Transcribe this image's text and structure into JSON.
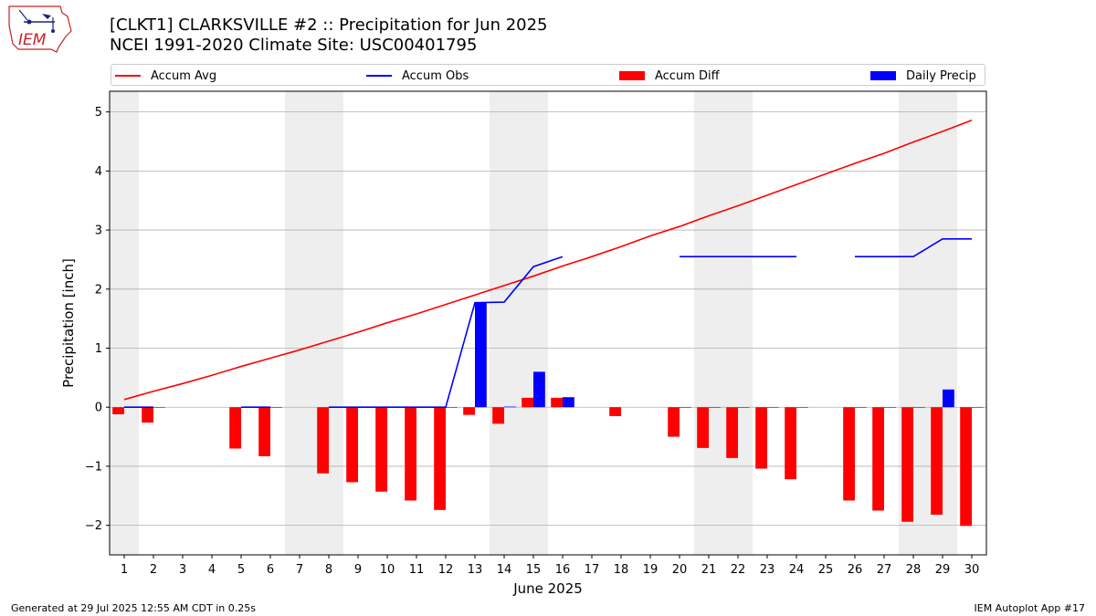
{
  "header": {
    "logo_text": "IEM",
    "title": "[CLKT1] CLARKSVILLE #2 :: Precipitation for Jun 2025",
    "subtitle": "NCEI 1991-2020 Climate Site: USC00401795"
  },
  "footer": {
    "generated": "Generated at 29 Jul 2025 12:55 AM CDT in 0.25s",
    "app": "IEM Autoplot App #17"
  },
  "colors": {
    "avg": "#ff0000",
    "obs": "#0000ff",
    "diff": "#ff0000",
    "daily": "#0000ff",
    "weekend": "#eeeeee"
  },
  "chart_data": {
    "type": "bar",
    "xlabel": "June 2025",
    "ylabel": "Precipitation [inch]",
    "xlim": [
      0.5,
      30.5
    ],
    "ylim": [
      -2.5,
      5.35
    ],
    "yticks": [
      -2,
      -1,
      0,
      1,
      2,
      3,
      4,
      5
    ],
    "ytick_labels": [
      "−2",
      "−1",
      "0",
      "1",
      "2",
      "3",
      "4",
      "5"
    ],
    "grid": "horizontal",
    "legend_placement": "top",
    "days": [
      1,
      2,
      3,
      4,
      5,
      6,
      7,
      8,
      9,
      10,
      11,
      12,
      13,
      14,
      15,
      16,
      17,
      18,
      19,
      20,
      21,
      22,
      23,
      24,
      25,
      26,
      27,
      28,
      29,
      30
    ],
    "weekend_bands": [
      [
        0.5,
        1.5
      ],
      [
        6.5,
        8.5
      ],
      [
        13.5,
        15.5
      ],
      [
        20.5,
        22.5
      ],
      [
        27.5,
        29.5
      ]
    ],
    "series": [
      {
        "name": "Accum Avg",
        "kind": "line",
        "values": [
          0.13,
          0.27,
          0.4,
          0.54,
          0.69,
          0.83,
          0.97,
          1.12,
          1.27,
          1.43,
          1.58,
          1.74,
          1.9,
          2.06,
          2.22,
          2.39,
          2.55,
          2.72,
          2.9,
          3.06,
          3.24,
          3.41,
          3.59,
          3.77,
          3.95,
          4.13,
          4.3,
          4.49,
          4.67,
          4.86
        ]
      },
      {
        "name": "Accum Obs",
        "kind": "line",
        "values": [
          0.0,
          0.0,
          null,
          null,
          0.0,
          0.0,
          null,
          0.0,
          0.0,
          0.0,
          0.0,
          0.0,
          1.77,
          1.78,
          2.38,
          2.55,
          null,
          null,
          null,
          2.55,
          2.55,
          2.55,
          2.55,
          2.55,
          null,
          2.55,
          2.55,
          2.55,
          2.85,
          2.85
        ]
      },
      {
        "name": "Accum Diff",
        "kind": "bar",
        "values": [
          -0.12,
          -0.26,
          null,
          null,
          -0.7,
          -0.83,
          null,
          -1.12,
          -1.27,
          -1.43,
          -1.58,
          -1.74,
          -0.13,
          -0.28,
          0.16,
          0.16,
          null,
          -0.15,
          null,
          -0.5,
          -0.69,
          -0.86,
          -1.04,
          -1.22,
          null,
          -1.58,
          -1.75,
          -1.94,
          -1.82,
          -2.01
        ]
      },
      {
        "name": "Daily Precip",
        "kind": "bar",
        "values": [
          0,
          0,
          null,
          null,
          0,
          0,
          null,
          0,
          0,
          0,
          0,
          0,
          1.77,
          0.01,
          0.6,
          0.17,
          null,
          null,
          null,
          0,
          0,
          0,
          0,
          0,
          null,
          0,
          0,
          0,
          0.3,
          0
        ]
      }
    ]
  }
}
